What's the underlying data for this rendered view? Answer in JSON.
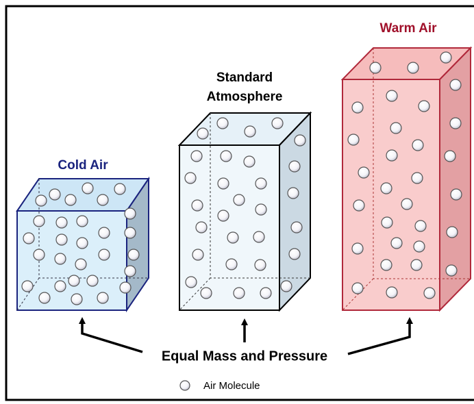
{
  "boxes": [
    {
      "title_lines": [
        "Cold Air"
      ]
    },
    {
      "title_lines": [
        "Standard",
        "Atmosphere"
      ]
    },
    {
      "title_lines": [
        "Warm Air"
      ]
    }
  ],
  "caption": "Equal Mass and Pressure",
  "legend": {
    "label": "Air Molecule"
  }
}
